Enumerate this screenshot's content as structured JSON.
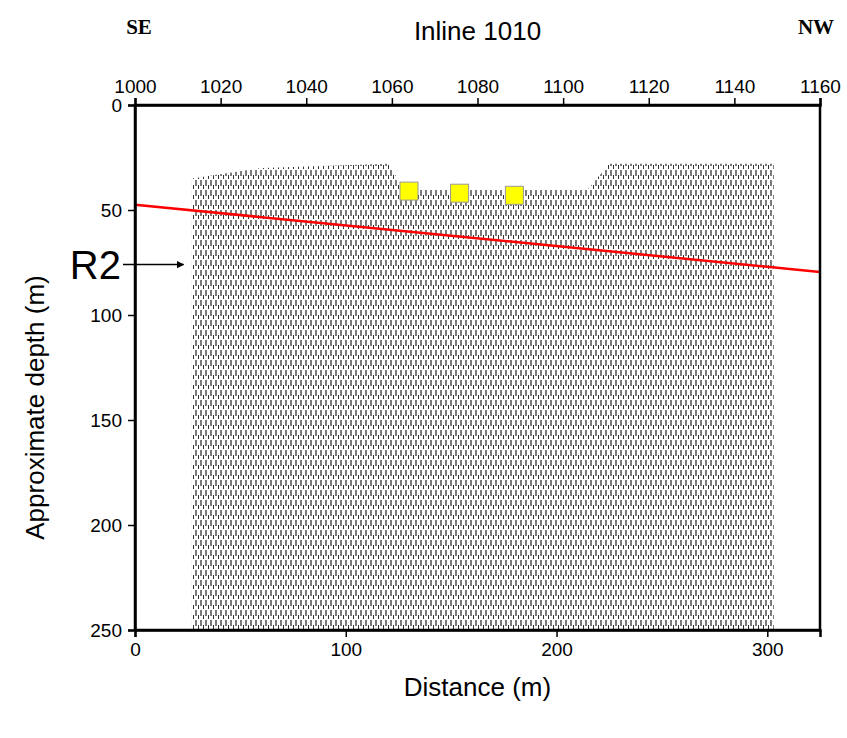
{
  "chart_data": {
    "type": "seismic_section",
    "title": "Inline 1010",
    "x_label": "Distance (m)",
    "y_label": "Approximate depth (m)",
    "direction_labels": [
      "SE",
      "NW"
    ],
    "xlim": [
      0,
      325
    ],
    "xticks": [
      0,
      100,
      200,
      300
    ],
    "x2lim": [
      1000,
      1160
    ],
    "x2ticks": [
      1000,
      1020,
      1040,
      1060,
      1080,
      1100,
      1120,
      1140,
      1160
    ],
    "ylim": [
      250,
      0
    ],
    "yticks": [
      0,
      50,
      100,
      150,
      200,
      250
    ],
    "coverage": {
      "color": "#000000",
      "x": [
        27,
        60,
        120,
        128,
        215,
        225,
        303,
        303,
        27
      ],
      "y": [
        35,
        30,
        28,
        40,
        40,
        28,
        28,
        250,
        250
      ]
    },
    "line": {
      "color": "#ff0000",
      "x": [
        0,
        325
      ],
      "y": [
        47.5,
        79.5
      ]
    },
    "markers": {
      "color": "#ffff00",
      "marker": "square",
      "x": [
        130,
        154,
        180
      ],
      "y": [
        41,
        42,
        43
      ]
    },
    "annotations": [
      {
        "text": "R2",
        "x": 24,
        "y": 76
      }
    ]
  }
}
